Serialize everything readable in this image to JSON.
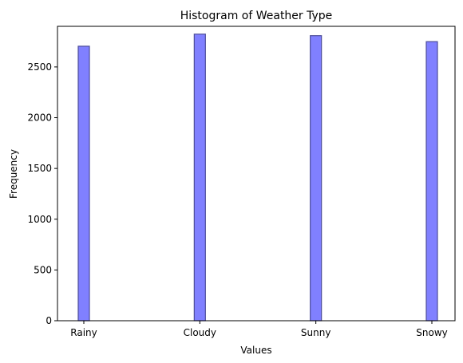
{
  "chart_data": {
    "type": "bar",
    "title": "Histogram of Weather Type",
    "xlabel": "Values",
    "ylabel": "Frequency",
    "categories": [
      "Rainy",
      "Cloudy",
      "Sunny",
      "Snowy"
    ],
    "values": [
      2704,
      2823,
      2808,
      2749
    ],
    "ylim": [
      0,
      2900
    ],
    "yticks": [
      0,
      500,
      1000,
      1500,
      2000,
      2500
    ],
    "grid": false,
    "bar_color": "#8080ff",
    "bar_edge_color": "#4d4d99"
  }
}
